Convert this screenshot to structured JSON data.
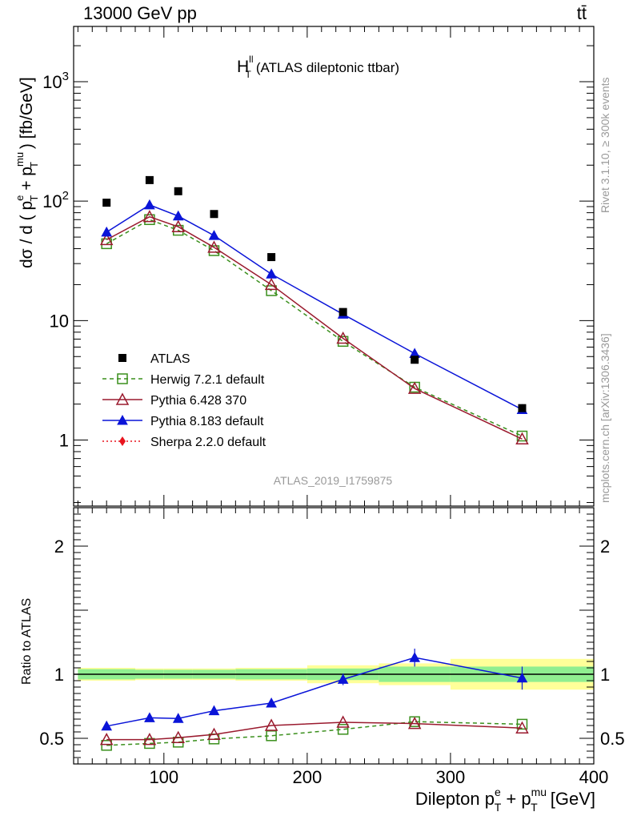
{
  "header": {
    "energy_label": "13000 GeV pp",
    "process_label": "tt̄"
  },
  "side_labels": {
    "rivet": "Rivet 3.1.10, ≥ 300k events",
    "mcplots": "mcplots.cern.ch [arXiv:1306.3436]"
  },
  "chart_data": {
    "type": "scatter",
    "title": "(ATLAS dileptonic ttbar)",
    "title_symbol": "H",
    "title_sup": "ll",
    "title_sub": "T",
    "analysis_id": "ATLAS_2019_I1759875",
    "xlabel": "Dilepton p_T^e + p_T^mu [GeV]",
    "xlabel_parts": {
      "prefix": "Dilepton p",
      "sup1": "e",
      "sub1": "T",
      "plus": " + p",
      "sup2": "mu",
      "sub2": "T",
      "suffix": " [GeV]"
    },
    "ylabel": "dσ / d ( p_T^e + p_T^mu ) [fb/GeV]",
    "ylabel_parts": {
      "prefix": "dσ / d ( p",
      "sup1": "e",
      "sub1": "T",
      "plus": " + p",
      "sup2": "mu",
      "sub2": "T",
      "suffix": " ) [fb/GeV]"
    },
    "ratio_ylabel": "Ratio to ATLAS",
    "xlim": [
      37,
      400
    ],
    "ylim": [
      0.28,
      2900
    ],
    "yscale": "log",
    "ratio_ylim": [
      0.3,
      2.3
    ],
    "x_ticks": [
      100,
      200,
      300,
      400
    ],
    "x_tick_labels": [
      "100",
      "200",
      "300",
      "400"
    ],
    "y_ticks": [
      1,
      10,
      100,
      1000
    ],
    "y_tick_labels": [
      "1",
      "10",
      "10²",
      "10³"
    ],
    "ratio_y_ticks": [
      0.5,
      1,
      2
    ],
    "ratio_y_tick_labels": [
      "0.5",
      "1",
      "2"
    ],
    "bin_edges": [
      40,
      80,
      100,
      120,
      150,
      200,
      250,
      300,
      400
    ],
    "x": [
      60,
      90,
      110,
      135,
      175,
      225,
      275,
      350
    ],
    "data": {
      "name": "ATLAS",
      "values": [
        97,
        150,
        121,
        78,
        34,
        11.8,
        4.7,
        1.85
      ],
      "band_inner": [
        0.04,
        0.035,
        0.035,
        0.035,
        0.04,
        0.045,
        0.06,
        0.06
      ],
      "band_outer": [
        0.05,
        0.045,
        0.045,
        0.045,
        0.05,
        0.07,
        0.085,
        0.12
      ]
    },
    "series": [
      {
        "name": "Herwig 7.2.1 default",
        "color": "#3a8f1c",
        "marker": "open-square",
        "dash": "dashed",
        "values": [
          44,
          70,
          57,
          38.5,
          17.8,
          6.7,
          2.77,
          1.08
        ],
        "ratio": [
          0.445,
          0.46,
          0.47,
          0.495,
          0.52,
          0.57,
          0.63,
          0.61
        ]
      },
      {
        "name": "Pythia 6.428 370",
        "color": "#9a1a2e",
        "marker": "open-triangle",
        "dash": "solid",
        "values": [
          47.5,
          74,
          61,
          41,
          20,
          7.1,
          2.7,
          1.02
        ],
        "ratio": [
          0.49,
          0.49,
          0.505,
          0.53,
          0.6,
          0.625,
          0.615,
          0.58
        ]
      },
      {
        "name": "Pythia 8.183 default",
        "color": "#0a14d8",
        "marker": "filled-triangle",
        "dash": "solid",
        "values": [
          55,
          93,
          75,
          51.5,
          24.5,
          11.3,
          5.3,
          1.8
        ],
        "ratio": [
          0.595,
          0.66,
          0.655,
          0.715,
          0.775,
          0.96,
          1.13,
          0.97
        ],
        "ratio_err": [
          0.015,
          0.02,
          0.02,
          0.025,
          0.03,
          0.045,
          0.07,
          0.09
        ]
      },
      {
        "name": "Sherpa 2.2.0 default",
        "color": "#e8141e",
        "marker": "filled-diamond",
        "dash": "dotted",
        "values": [],
        "ratio": []
      }
    ],
    "colors": {
      "band_inner": "#90ee90",
      "band_outer": "#ffff99",
      "data": "#000000"
    }
  }
}
